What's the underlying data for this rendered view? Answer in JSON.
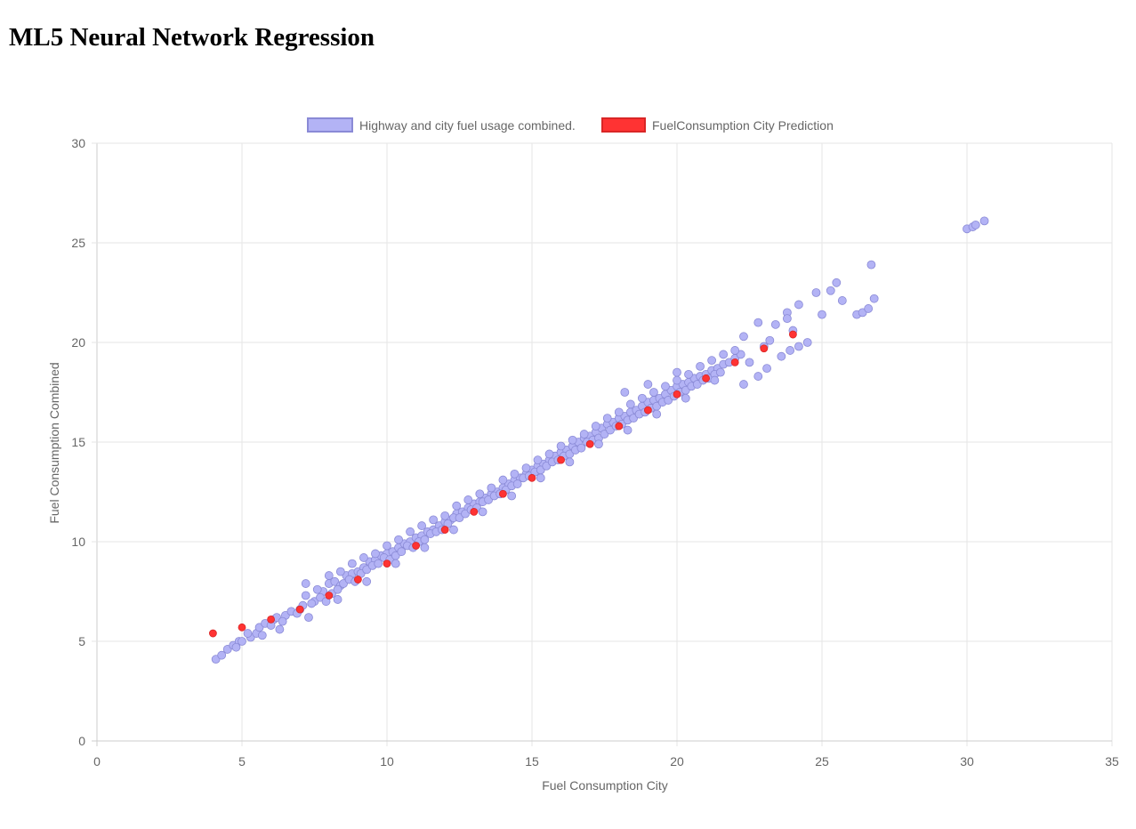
{
  "page": {
    "title": "ML5 Neural Network Regression"
  },
  "colors": {
    "data_fill": "#b3b3f5",
    "data_stroke": "#8a8ad6",
    "prediction_fill": "#ff3333",
    "prediction_stroke": "#d92626",
    "grid": "#e5e5e5",
    "axis": "#cccccc",
    "text": "#666666"
  },
  "chart_data": {
    "type": "scatter",
    "xlabel": "Fuel Consumption City",
    "ylabel": "Fuel Consumption Combined",
    "xlim": [
      0,
      35
    ],
    "ylim": [
      0,
      30
    ],
    "x_ticks": [
      "0",
      "5",
      "10",
      "15",
      "20",
      "25",
      "30",
      "35"
    ],
    "y_ticks": [
      "0",
      "5",
      "10",
      "15",
      "20",
      "25",
      "30"
    ],
    "grid": true,
    "legend_position": "top-center",
    "series": [
      {
        "name": "Highway and city fuel usage combined.",
        "color": "#b3b3f5",
        "points": [
          [
            4.1,
            4.1
          ],
          [
            4.3,
            4.3
          ],
          [
            4.5,
            4.6
          ],
          [
            4.7,
            4.8
          ],
          [
            4.9,
            5.0
          ],
          [
            5.0,
            5.0
          ],
          [
            5.3,
            5.2
          ],
          [
            5.5,
            5.4
          ],
          [
            5.6,
            5.7
          ],
          [
            5.8,
            5.9
          ],
          [
            6.1,
            6.1
          ],
          [
            6.2,
            6.2
          ],
          [
            6.5,
            6.3
          ],
          [
            6.7,
            6.5
          ],
          [
            7.0,
            6.6
          ],
          [
            7.2,
            7.3
          ],
          [
            7.5,
            7.0
          ],
          [
            7.8,
            7.5
          ],
          [
            8.0,
            7.9
          ],
          [
            8.2,
            8.0
          ],
          [
            8.4,
            7.8
          ],
          [
            8.6,
            8.3
          ],
          [
            8.8,
            8.4
          ],
          [
            9.0,
            8.5
          ],
          [
            9.2,
            8.7
          ],
          [
            9.4,
            9.0
          ],
          [
            9.6,
            9.1
          ],
          [
            9.8,
            9.3
          ],
          [
            10.0,
            9.4
          ],
          [
            10.2,
            9.5
          ],
          [
            10.4,
            9.7
          ],
          [
            10.6,
            9.9
          ],
          [
            10.8,
            10.0
          ],
          [
            11.0,
            10.2
          ],
          [
            11.2,
            10.3
          ],
          [
            11.4,
            10.5
          ],
          [
            11.6,
            10.6
          ],
          [
            11.8,
            10.8
          ],
          [
            12.0,
            11.0
          ],
          [
            12.2,
            11.1
          ],
          [
            12.4,
            11.4
          ],
          [
            12.6,
            11.5
          ],
          [
            12.8,
            11.7
          ],
          [
            13.0,
            11.9
          ],
          [
            13.2,
            12.0
          ],
          [
            13.4,
            12.2
          ],
          [
            13.6,
            12.4
          ],
          [
            13.8,
            12.5
          ],
          [
            14.0,
            12.7
          ],
          [
            14.2,
            12.9
          ],
          [
            14.4,
            13.1
          ],
          [
            14.6,
            13.2
          ],
          [
            14.8,
            13.4
          ],
          [
            15.0,
            13.6
          ],
          [
            15.2,
            13.8
          ],
          [
            15.4,
            13.9
          ],
          [
            15.6,
            14.1
          ],
          [
            15.8,
            14.3
          ],
          [
            16.0,
            14.5
          ],
          [
            16.2,
            14.6
          ],
          [
            16.4,
            14.8
          ],
          [
            16.6,
            15.0
          ],
          [
            16.8,
            15.2
          ],
          [
            17.0,
            15.3
          ],
          [
            17.2,
            15.5
          ],
          [
            17.4,
            15.7
          ],
          [
            17.6,
            15.9
          ],
          [
            17.8,
            16.0
          ],
          [
            18.0,
            16.2
          ],
          [
            18.2,
            16.3
          ],
          [
            18.4,
            16.5
          ],
          [
            18.6,
            16.6
          ],
          [
            18.8,
            16.8
          ],
          [
            19.0,
            17.0
          ],
          [
            19.2,
            17.1
          ],
          [
            19.4,
            17.2
          ],
          [
            19.6,
            17.4
          ],
          [
            19.8,
            17.6
          ],
          [
            20.0,
            17.8
          ],
          [
            20.2,
            17.9
          ],
          [
            20.4,
            18.0
          ],
          [
            20.6,
            18.2
          ],
          [
            20.8,
            18.3
          ],
          [
            21.0,
            18.4
          ],
          [
            21.2,
            18.6
          ],
          [
            21.4,
            18.7
          ],
          [
            21.6,
            18.9
          ],
          [
            21.8,
            19.0
          ],
          [
            22.0,
            19.2
          ],
          [
            22.2,
            19.4
          ],
          [
            22.3,
            20.3
          ],
          [
            22.5,
            19.0
          ],
          [
            22.8,
            18.3
          ],
          [
            23.0,
            19.8
          ],
          [
            23.2,
            20.1
          ],
          [
            23.4,
            20.9
          ],
          [
            23.6,
            19.3
          ],
          [
            23.8,
            21.5
          ],
          [
            24.0,
            20.6
          ],
          [
            24.2,
            21.9
          ],
          [
            24.5,
            20.0
          ],
          [
            24.8,
            22.5
          ],
          [
            25.0,
            21.4
          ],
          [
            25.3,
            22.6
          ],
          [
            25.5,
            23.0
          ],
          [
            25.7,
            22.1
          ],
          [
            26.2,
            21.4
          ],
          [
            26.4,
            21.5
          ],
          [
            26.6,
            21.7
          ],
          [
            26.7,
            23.9
          ],
          [
            26.8,
            22.2
          ],
          [
            30.0,
            25.7
          ],
          [
            30.2,
            25.8
          ],
          [
            30.3,
            25.9
          ],
          [
            30.6,
            26.1
          ],
          [
            4.8,
            4.7
          ],
          [
            5.2,
            5.4
          ],
          [
            5.7,
            5.3
          ],
          [
            6.0,
            5.8
          ],
          [
            6.4,
            6.0
          ],
          [
            6.9,
            6.4
          ],
          [
            7.1,
            6.8
          ],
          [
            7.4,
            6.9
          ],
          [
            7.7,
            7.2
          ],
          [
            7.9,
            7.0
          ],
          [
            8.1,
            7.4
          ],
          [
            8.3,
            7.6
          ],
          [
            8.5,
            7.9
          ],
          [
            8.7,
            8.1
          ],
          [
            8.9,
            8.0
          ],
          [
            9.1,
            8.4
          ],
          [
            9.3,
            8.6
          ],
          [
            9.5,
            8.8
          ],
          [
            9.7,
            8.9
          ],
          [
            9.9,
            9.2
          ],
          [
            10.1,
            9.1
          ],
          [
            10.3,
            9.3
          ],
          [
            10.5,
            9.5
          ],
          [
            10.7,
            9.8
          ],
          [
            10.9,
            9.7
          ],
          [
            11.1,
            10.0
          ],
          [
            11.3,
            10.1
          ],
          [
            11.5,
            10.4
          ],
          [
            11.7,
            10.5
          ],
          [
            11.9,
            10.6
          ],
          [
            12.1,
            10.9
          ],
          [
            12.3,
            11.2
          ],
          [
            12.5,
            11.2
          ],
          [
            12.7,
            11.4
          ],
          [
            12.9,
            11.6
          ],
          [
            13.1,
            11.7
          ],
          [
            13.3,
            12.0
          ],
          [
            13.5,
            12.1
          ],
          [
            13.7,
            12.3
          ],
          [
            13.9,
            12.4
          ],
          [
            14.1,
            12.6
          ],
          [
            14.3,
            12.8
          ],
          [
            14.5,
            12.9
          ],
          [
            14.7,
            13.2
          ],
          [
            14.9,
            13.3
          ],
          [
            15.1,
            13.5
          ],
          [
            15.3,
            13.6
          ],
          [
            15.5,
            13.8
          ],
          [
            15.7,
            14.0
          ],
          [
            15.9,
            14.1
          ],
          [
            16.1,
            14.3
          ],
          [
            16.3,
            14.4
          ],
          [
            16.5,
            14.6
          ],
          [
            16.7,
            14.7
          ],
          [
            16.9,
            15.0
          ],
          [
            17.1,
            15.1
          ],
          [
            17.3,
            15.2
          ],
          [
            17.5,
            15.4
          ],
          [
            17.7,
            15.6
          ],
          [
            17.9,
            15.8
          ],
          [
            18.1,
            15.9
          ],
          [
            18.3,
            16.1
          ],
          [
            18.5,
            16.2
          ],
          [
            18.7,
            16.4
          ],
          [
            18.9,
            16.5
          ],
          [
            19.1,
            16.7
          ],
          [
            19.3,
            16.8
          ],
          [
            19.5,
            17.0
          ],
          [
            19.7,
            17.1
          ],
          [
            19.9,
            17.3
          ],
          [
            20.1,
            17.5
          ],
          [
            20.3,
            17.6
          ],
          [
            20.5,
            17.8
          ],
          [
            20.7,
            17.9
          ],
          [
            20.9,
            18.1
          ],
          [
            21.1,
            18.2
          ],
          [
            21.3,
            18.4
          ],
          [
            21.5,
            18.5
          ],
          [
            7.2,
            7.9
          ],
          [
            7.6,
            7.6
          ],
          [
            8.0,
            8.3
          ],
          [
            8.4,
            8.5
          ],
          [
            8.8,
            8.9
          ],
          [
            9.2,
            9.2
          ],
          [
            9.6,
            9.4
          ],
          [
            10.0,
            9.8
          ],
          [
            10.4,
            10.1
          ],
          [
            10.8,
            10.5
          ],
          [
            11.2,
            10.8
          ],
          [
            11.6,
            11.1
          ],
          [
            12.0,
            11.3
          ],
          [
            12.4,
            11.8
          ],
          [
            12.8,
            12.1
          ],
          [
            13.2,
            12.4
          ],
          [
            13.6,
            12.7
          ],
          [
            14.0,
            13.1
          ],
          [
            14.4,
            13.4
          ],
          [
            14.8,
            13.7
          ],
          [
            15.2,
            14.1
          ],
          [
            15.6,
            14.4
          ],
          [
            16.0,
            14.8
          ],
          [
            16.4,
            15.1
          ],
          [
            16.8,
            15.4
          ],
          [
            17.2,
            15.8
          ],
          [
            17.6,
            16.2
          ],
          [
            18.0,
            16.5
          ],
          [
            18.4,
            16.9
          ],
          [
            18.8,
            17.2
          ],
          [
            19.2,
            17.5
          ],
          [
            19.6,
            17.8
          ],
          [
            20.0,
            18.1
          ],
          [
            20.4,
            18.4
          ],
          [
            20.8,
            18.8
          ],
          [
            21.2,
            19.1
          ],
          [
            21.6,
            19.4
          ],
          [
            22.0,
            19.6
          ],
          [
            18.2,
            17.5
          ],
          [
            19.0,
            17.9
          ],
          [
            20.0,
            18.5
          ],
          [
            6.3,
            5.6
          ],
          [
            7.3,
            6.2
          ],
          [
            8.3,
            7.1
          ],
          [
            9.3,
            8.0
          ],
          [
            10.3,
            8.9
          ],
          [
            11.3,
            9.7
          ],
          [
            12.3,
            10.6
          ],
          [
            13.3,
            11.5
          ],
          [
            14.3,
            12.3
          ],
          [
            15.3,
            13.2
          ],
          [
            16.3,
            14.0
          ],
          [
            17.3,
            14.9
          ],
          [
            18.3,
            15.6
          ],
          [
            19.3,
            16.4
          ],
          [
            20.3,
            17.2
          ],
          [
            21.3,
            18.1
          ],
          [
            22.3,
            17.9
          ],
          [
            23.1,
            18.7
          ],
          [
            23.9,
            19.6
          ],
          [
            24.2,
            19.8
          ],
          [
            22.8,
            21.0
          ],
          [
            23.8,
            21.2
          ]
        ]
      },
      {
        "name": "FuelConsumption City Prediction",
        "color": "#ff3333",
        "points": [
          [
            4.0,
            5.4
          ],
          [
            5.0,
            5.7
          ],
          [
            6.0,
            6.1
          ],
          [
            7.0,
            6.6
          ],
          [
            8.0,
            7.3
          ],
          [
            9.0,
            8.1
          ],
          [
            10.0,
            8.9
          ],
          [
            11.0,
            9.8
          ],
          [
            12.0,
            10.6
          ],
          [
            13.0,
            11.5
          ],
          [
            14.0,
            12.4
          ],
          [
            15.0,
            13.2
          ],
          [
            16.0,
            14.1
          ],
          [
            17.0,
            14.9
          ],
          [
            18.0,
            15.8
          ],
          [
            19.0,
            16.6
          ],
          [
            20.0,
            17.4
          ],
          [
            21.0,
            18.2
          ],
          [
            22.0,
            19.0
          ],
          [
            23.0,
            19.7
          ],
          [
            24.0,
            20.4
          ]
        ]
      }
    ]
  }
}
